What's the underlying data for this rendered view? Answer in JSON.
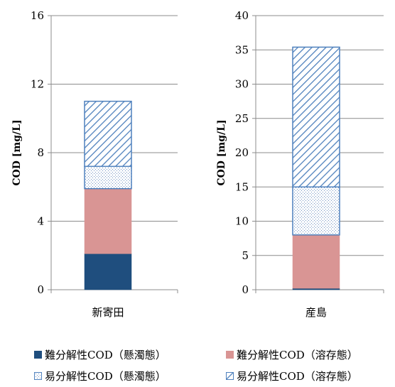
{
  "chart_data": [
    {
      "type": "bar",
      "stacked": true,
      "categories": [
        "新寄田"
      ],
      "ylabel": "COD [mg/L]",
      "ylim": [
        0,
        16
      ],
      "yticks": [
        0,
        4,
        8,
        12,
        16
      ],
      "grid": true,
      "series": [
        {
          "name": "難分解性COD（懸濁態）",
          "values": [
            2.1
          ]
        },
        {
          "name": "難分解性COD（溶存態）",
          "values": [
            3.8
          ]
        },
        {
          "name": "易分解性COD（懸濁態）",
          "values": [
            1.3
          ]
        },
        {
          "name": "易分解性COD（溶存態）",
          "values": [
            3.8
          ]
        }
      ]
    },
    {
      "type": "bar",
      "stacked": true,
      "categories": [
        "産島"
      ],
      "ylabel": "COD [mg/L]",
      "ylim": [
        0,
        40
      ],
      "yticks": [
        0,
        5,
        10,
        15,
        20,
        25,
        30,
        35,
        40
      ],
      "grid": true,
      "series": [
        {
          "name": "難分解性COD（懸濁態）",
          "values": [
            0.2
          ]
        },
        {
          "name": "難分解性COD（溶存態）",
          "values": [
            7.8
          ]
        },
        {
          "name": "易分解性COD（懸濁態）",
          "values": [
            7.0
          ]
        },
        {
          "name": "易分解性COD（溶存態）",
          "values": [
            20.4
          ]
        }
      ]
    }
  ],
  "legend": {
    "placement": "bottom",
    "items": [
      {
        "label": "難分解性COD（懸濁態）",
        "style": "solid",
        "color": "#1f4e7e"
      },
      {
        "label": "難分解性COD（溶存態）",
        "style": "solid",
        "color": "#d99594"
      },
      {
        "label": "易分解性COD（懸濁態）",
        "style": "dots",
        "color": "#4f81bd"
      },
      {
        "label": "易分解性COD（溶存態）",
        "style": "hatch",
        "color": "#4f81bd"
      }
    ]
  }
}
